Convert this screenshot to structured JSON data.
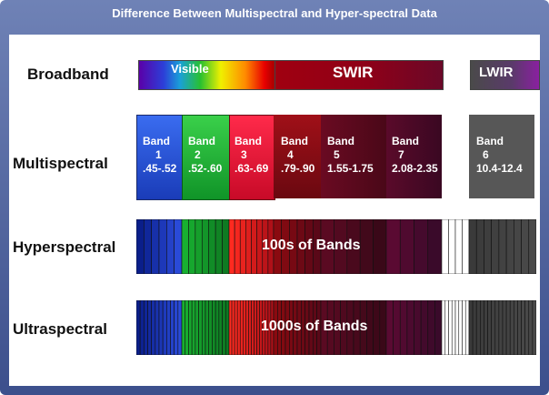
{
  "title": "Difference Between Multispectral and Hyper-spectral Data",
  "rows": {
    "broadband": "Broadband",
    "multispectral": "Multispectral",
    "hyperspectral": "Hyperspectral",
    "ultraspectral": "Ultraspectral"
  },
  "broadband": {
    "visible": "Visible",
    "swir": "SWIR",
    "lwir": "LWIR"
  },
  "bands": [
    {
      "label": "Band",
      "num": "1",
      "range": ".45-.52",
      "color": "#2b55d6"
    },
    {
      "label": "Band",
      "num": "2",
      "range": ".52-.60",
      "color": "#22b43a"
    },
    {
      "label": "Band",
      "num": "3",
      "range": ".63-.69",
      "color": "#e8163a"
    },
    {
      "label": "Band",
      "num": "4",
      "range": ".79-.90",
      "color": "#8a0d12"
    },
    {
      "label": "Band",
      "num": "5",
      "range": "1.55-1.75",
      "color": "#5c0a22"
    },
    {
      "label": "Band",
      "num": "7",
      "range": "2.08-2.35",
      "color": "#4c0b2a"
    },
    {
      "label": "Band",
      "num": "6",
      "range": "10.4-12.4",
      "color": "#565656"
    }
  ],
  "hyper_label": "100s of Bands",
  "ultra_label": "1000s of Bands"
}
